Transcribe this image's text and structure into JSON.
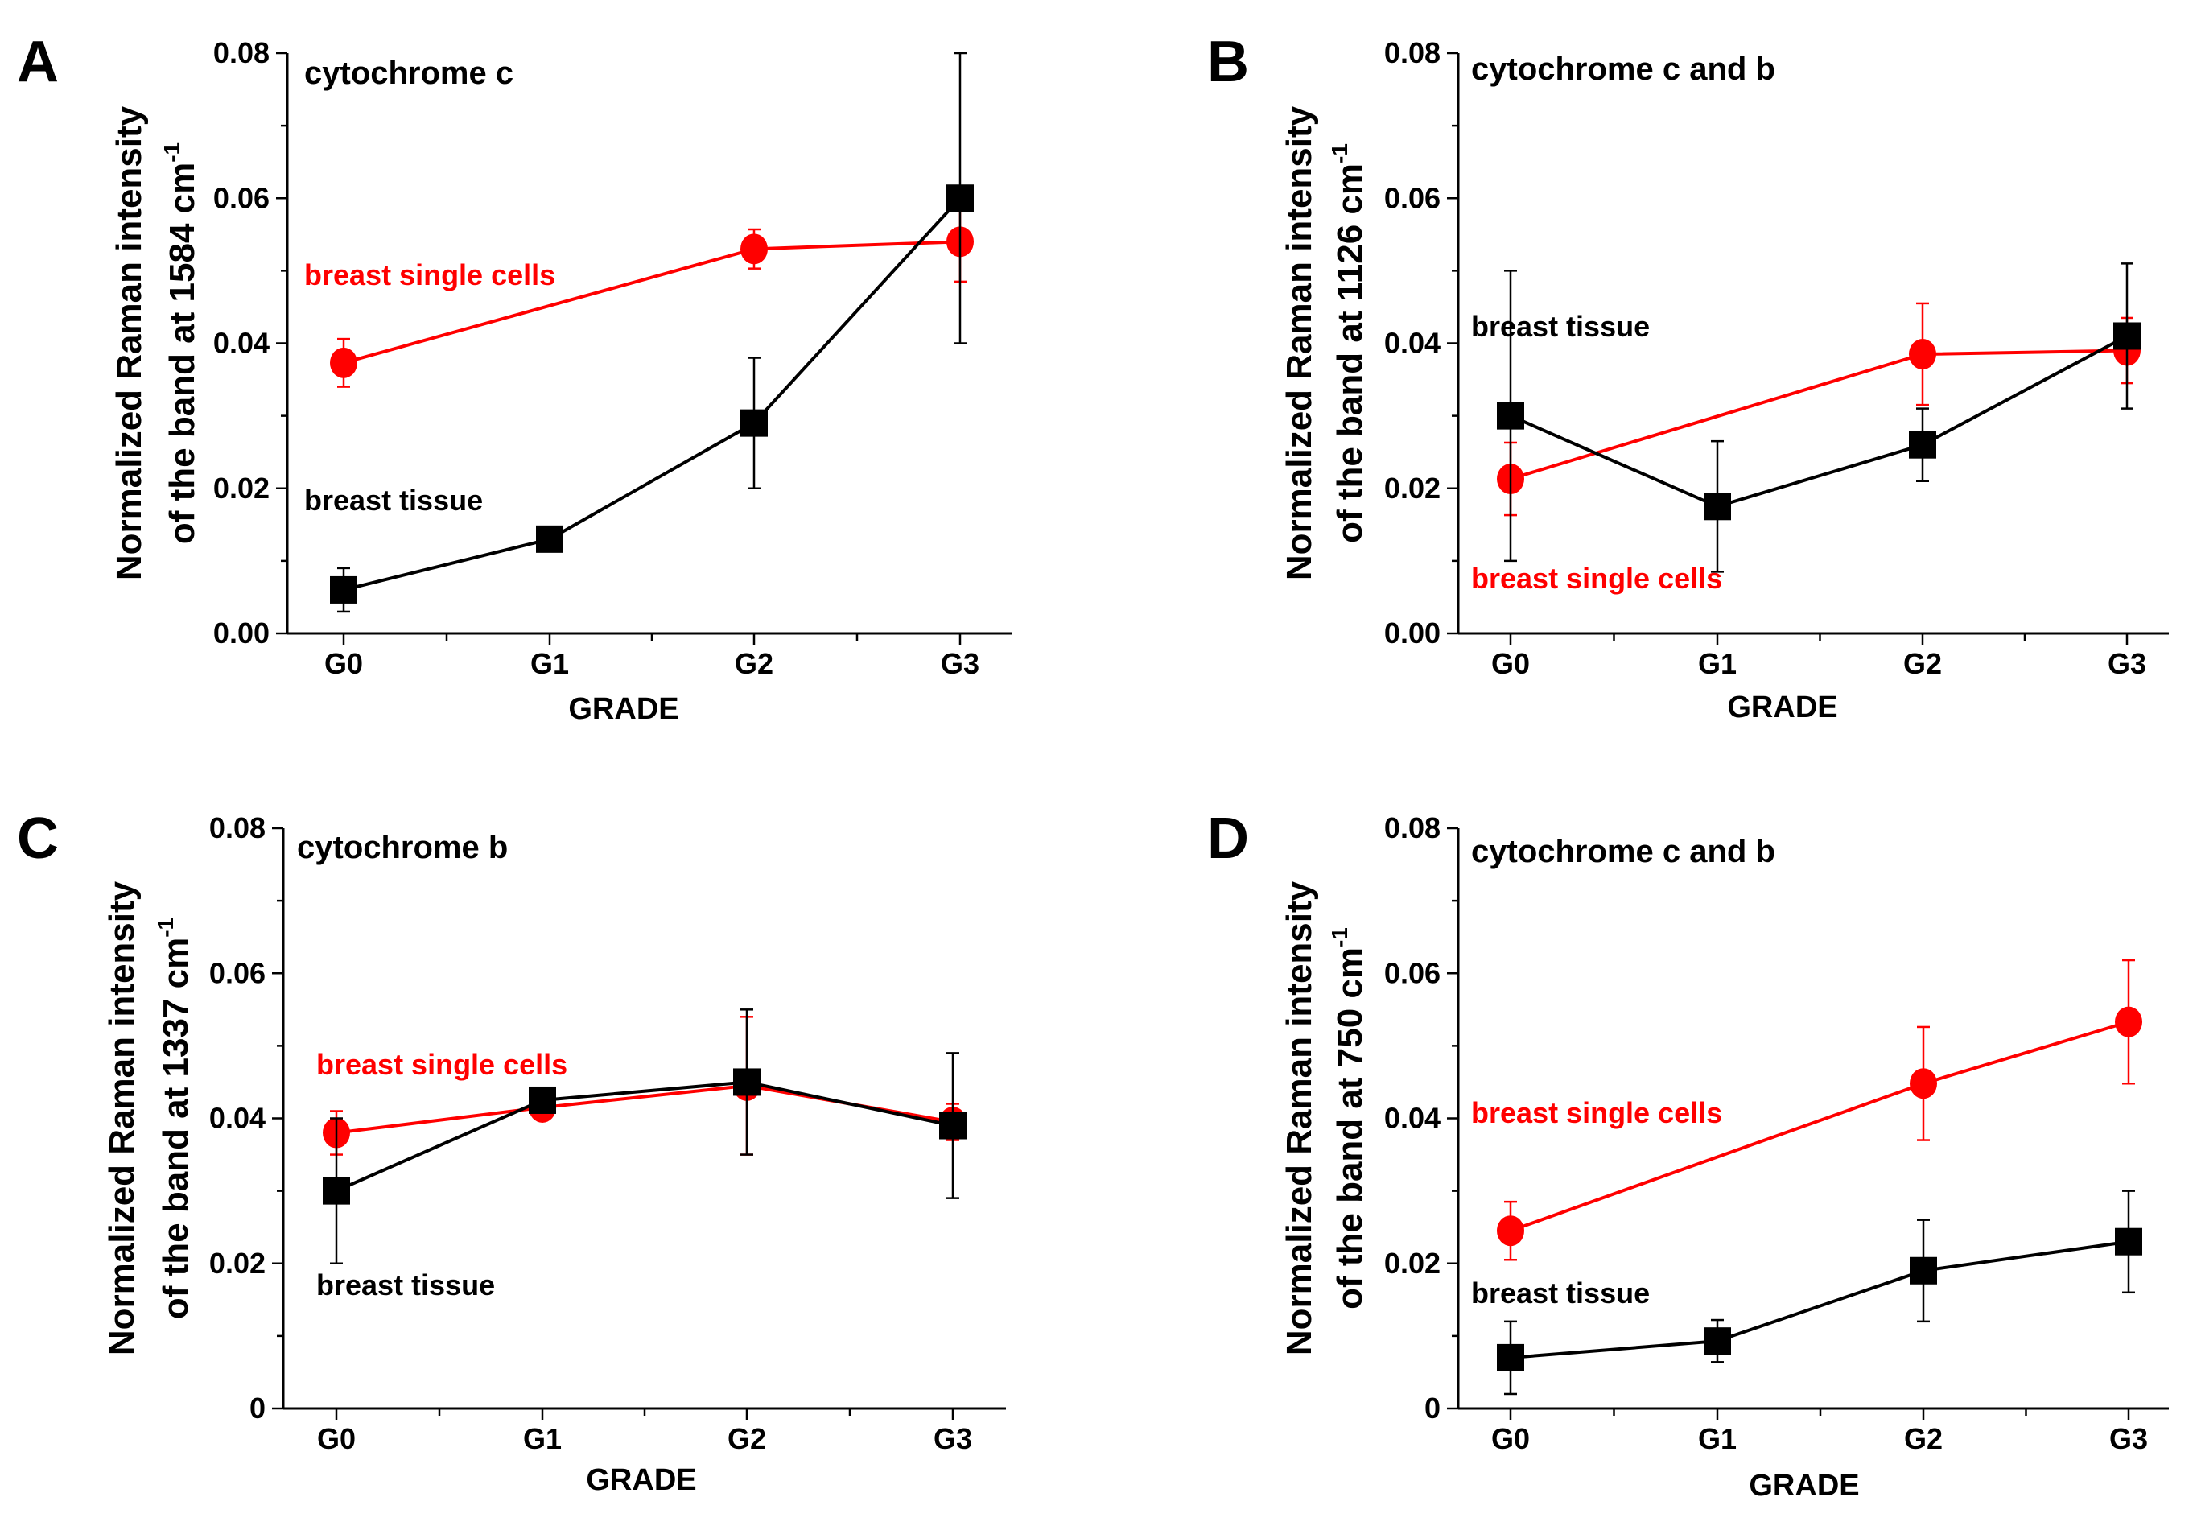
{
  "colors": {
    "tissue": "#000000",
    "cells": "#ff0000"
  },
  "chart_data": [
    {
      "type": "line",
      "panel_label": "A",
      "title": "cytochrome c",
      "xlabel": "GRADE",
      "ylabel": [
        "Normalized Raman intensity",
        "of the band at 1584 cm",
        "-1"
      ],
      "categories": [
        "G0",
        "G1",
        "G2",
        "G3"
      ],
      "ylim": [
        0,
        0.08
      ],
      "yticks": [
        "0.00",
        "0.02",
        "0.04",
        "0.06",
        "0.08"
      ],
      "series": [
        {
          "name": "breast single cells",
          "color": "#ff0000",
          "marker": "circle",
          "values": [
            0.0373,
            null,
            0.053,
            0.054
          ],
          "errors": [
            0.0033,
            null,
            0.0027,
            0.0055
          ]
        },
        {
          "name": "breast tissue",
          "color": "#000000",
          "marker": "square",
          "values": [
            0.006,
            0.013,
            0.029,
            0.06
          ],
          "errors": [
            0.003,
            0,
            0.009,
            0.02
          ]
        }
      ]
    },
    {
      "type": "line",
      "panel_label": "B",
      "title": "cytochrome c and b",
      "xlabel": "GRADE",
      "ylabel": [
        "Normalized Raman intensity",
        "of the band at 1126 cm",
        "-1"
      ],
      "categories": [
        "G0",
        "G1",
        "G2",
        "G3"
      ],
      "ylim": [
        0,
        0.08
      ],
      "yticks": [
        "0.00",
        "0.02",
        "0.04",
        "0.06",
        "0.08"
      ],
      "series": [
        {
          "name": "breast single cells",
          "color": "#ff0000",
          "marker": "circle",
          "values": [
            0.0213,
            null,
            0.0385,
            0.039
          ],
          "errors": [
            0.005,
            null,
            0.007,
            0.0045
          ]
        },
        {
          "name": "breast tissue",
          "color": "#000000",
          "marker": "square",
          "values": [
            0.03,
            0.0175,
            0.026,
            0.041
          ],
          "errors": [
            0.02,
            0.009,
            0.005,
            0.01
          ]
        }
      ]
    },
    {
      "type": "line",
      "panel_label": "C",
      "title": "cytochrome b",
      "xlabel": "GRADE",
      "ylabel": [
        "Normalized Raman intensity",
        "of the band at 1337 cm",
        "-1"
      ],
      "categories": [
        "G0",
        "G1",
        "G2",
        "G3"
      ],
      "ylim": [
        0,
        0.08
      ],
      "yticks": [
        "0",
        "0.02",
        "0.04",
        "0.06",
        "0.08"
      ],
      "series": [
        {
          "name": "breast single cells",
          "color": "#ff0000",
          "marker": "circle",
          "values": [
            0.038,
            0.0415,
            0.0445,
            0.0395
          ],
          "errors": [
            0.003,
            0.001,
            0.0095,
            0.0025
          ]
        },
        {
          "name": "breast tissue",
          "color": "#000000",
          "marker": "square",
          "values": [
            0.03,
            0.0425,
            0.045,
            0.039
          ],
          "errors": [
            0.01,
            0.0015,
            0.01,
            0.01
          ]
        }
      ]
    },
    {
      "type": "line",
      "panel_label": "D",
      "title": "cytochrome c and b",
      "xlabel": "GRADE",
      "ylabel": [
        "Normalized Raman intensity",
        "of the band at 750 cm",
        "-1"
      ],
      "categories": [
        "G0",
        "G1",
        "G2",
        "G3"
      ],
      "ylim": [
        0,
        0.08
      ],
      "yticks": [
        "0",
        "0.02",
        "0.04",
        "0.06",
        "0.08"
      ],
      "series": [
        {
          "name": "breast single cells",
          "color": "#ff0000",
          "marker": "circle",
          "values": [
            0.0245,
            null,
            0.0448,
            0.0533
          ],
          "errors": [
            0.004,
            null,
            0.0078,
            0.0085
          ]
        },
        {
          "name": "breast tissue",
          "color": "#000000",
          "marker": "square",
          "values": [
            0.007,
            0.0093,
            0.019,
            0.023
          ],
          "errors": [
            0.005,
            0.0029,
            0.007,
            0.007
          ]
        }
      ]
    }
  ]
}
